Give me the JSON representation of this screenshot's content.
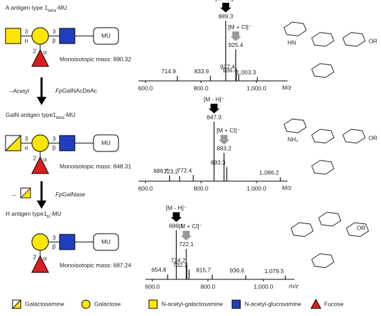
{
  "glycans": [
    {
      "name": {
        "text": "A antigen type 1",
        "sub": "tetra",
        "suffix": "-MU"
      },
      "linkages": [
        "3",
        "α",
        "3",
        "β",
        "2",
        "α"
      ],
      "aglycone": "MU",
      "mass": "Monoisotopic mass: 890.32"
    },
    {
      "name": {
        "text": "GalN antigen type1",
        "sub": "tetra",
        "suffix": "-MU"
      },
      "linkages": [
        "3",
        "α",
        "3",
        "β",
        "2",
        "α"
      ],
      "aglycone": "MU",
      "mass": "Monoisotopic mass: 848.31"
    },
    {
      "name": {
        "text": "H antigen type1",
        "sub": "tri",
        "suffix": "-MU"
      },
      "linkages": [
        "3",
        "β",
        "2",
        "α"
      ],
      "aglycone": "MU",
      "mass": "Monoisotopic mass: 687.24"
    }
  ],
  "steps": [
    {
      "prefix": "–Acetyl",
      "italic": "Fp",
      "rest": "GalNAcDeAc"
    },
    {
      "prefix": "–",
      "italic": "Fp",
      "rest": "GalNase"
    }
  ],
  "legend": [
    "Galactosamine",
    "Galactose",
    "N-acetyl-galactosamine",
    "N-acetyl-glucosamine",
    "Fucose"
  ],
  "chart_data": [
    {
      "type": "stem",
      "xlabel": "M/z",
      "x": [
        714.9,
        833.9,
        889.3,
        925.4,
        927.4,
        936.4,
        1003.3
      ],
      "x_labels": [
        "714.9",
        "833.9",
        "889.3",
        "925.4",
        "927.4",
        "936.4",
        "1,003.3"
      ],
      "values": [
        4,
        4,
        100,
        50,
        12,
        6,
        2
      ],
      "xlim": [
        575,
        1112
      ],
      "xticks": [
        {
          "value": 600,
          "label": "600.0"
        },
        {
          "value": 800,
          "label": "800.0"
        },
        {
          "value": 1000,
          "label": "1,000.0"
        }
      ],
      "annotations": [
        "[M - H]⁻",
        "[M + Cl]⁻"
      ]
    },
    {
      "type": "stem",
      "xlabel": "M/z",
      "x": [
        686.7,
        723.2,
        772.4,
        847.3,
        883.2,
        893.3,
        1086.2
      ],
      "x_labels": [
        "686.7",
        "723.2",
        "772.4",
        "847.3",
        "883.2",
        "893.3",
        "1,086.2"
      ],
      "values": [
        5,
        4,
        6,
        100,
        45,
        20,
        2
      ],
      "xlim": [
        575,
        1112
      ],
      "xticks": [
        {
          "value": 600,
          "label": "600.0"
        },
        {
          "value": 800,
          "label": "800.0"
        },
        {
          "value": 1000,
          "label": "1,000.0"
        }
      ],
      "annotations": [
        "[M - H]⁻",
        "[M + Cl]⁻"
      ]
    },
    {
      "type": "stem",
      "xlabel": "m/z",
      "x": [
        654.8,
        686.1,
        722.1,
        724.2,
        732.2,
        815.7,
        936.6,
        1079.5
      ],
      "x_labels": [
        "654.8",
        "686.1",
        "722.1",
        "724.2",
        "732.2",
        "815.7",
        "936.6",
        "1,079.5"
      ],
      "values": [
        5,
        100,
        60,
        25,
        15,
        4,
        3,
        2
      ],
      "xlim": [
        575,
        1112
      ],
      "xticks": [
        {
          "value": 600,
          "label": "600.0"
        },
        {
          "value": 800,
          "label": "800.0"
        },
        {
          "value": 1000,
          "label": "1,000.0"
        }
      ],
      "annotations": [
        "[M - H]⁻",
        "[M + Cl]⁻"
      ]
    }
  ],
  "structures": [
    {
      "labels": [
        "HN",
        "OR"
      ]
    },
    {
      "labels": [
        "NH₂",
        "OR"
      ]
    },
    {
      "labels": [
        "OR"
      ]
    }
  ]
}
